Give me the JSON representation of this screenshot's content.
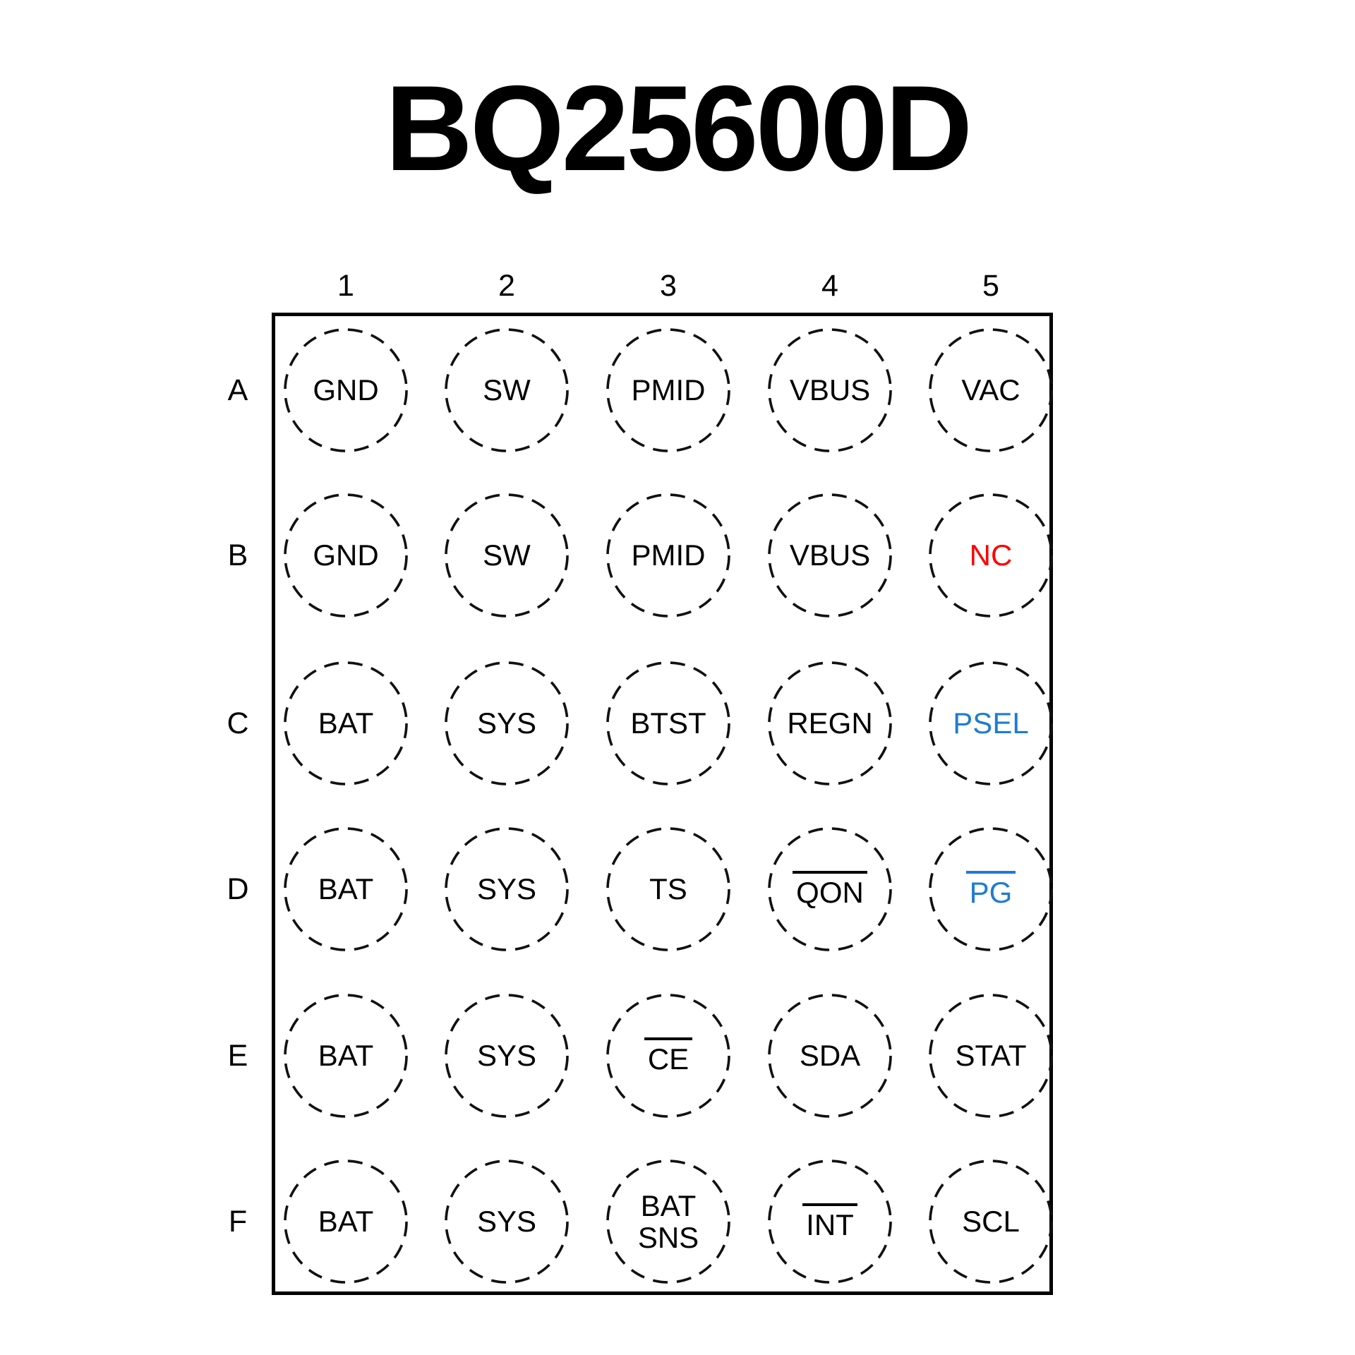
{
  "title": "BQ25600D",
  "colors": {
    "black": "#000000",
    "red": "#FF0000",
    "blue": "#1E7CD2"
  },
  "grid": {
    "columns": [
      "1",
      "2",
      "3",
      "4",
      "5"
    ],
    "rows": [
      "A",
      "B",
      "C",
      "D",
      "E",
      "F"
    ],
    "pins": [
      {
        "id": "A1",
        "row": "A",
        "col": "1",
        "lines": [
          "GND"
        ],
        "color": "black",
        "overline": false
      },
      {
        "id": "A2",
        "row": "A",
        "col": "2",
        "lines": [
          "SW"
        ],
        "color": "black",
        "overline": false
      },
      {
        "id": "A3",
        "row": "A",
        "col": "3",
        "lines": [
          "PMID"
        ],
        "color": "black",
        "overline": false
      },
      {
        "id": "A4",
        "row": "A",
        "col": "4",
        "lines": [
          "VBUS"
        ],
        "color": "black",
        "overline": false
      },
      {
        "id": "A5",
        "row": "A",
        "col": "5",
        "lines": [
          "VAC"
        ],
        "color": "black",
        "overline": false
      },
      {
        "id": "B1",
        "row": "B",
        "col": "1",
        "lines": [
          "GND"
        ],
        "color": "black",
        "overline": false
      },
      {
        "id": "B2",
        "row": "B",
        "col": "2",
        "lines": [
          "SW"
        ],
        "color": "black",
        "overline": false
      },
      {
        "id": "B3",
        "row": "B",
        "col": "3",
        "lines": [
          "PMID"
        ],
        "color": "black",
        "overline": false
      },
      {
        "id": "B4",
        "row": "B",
        "col": "4",
        "lines": [
          "VBUS"
        ],
        "color": "black",
        "overline": false
      },
      {
        "id": "B5",
        "row": "B",
        "col": "5",
        "lines": [
          "NC"
        ],
        "color": "red",
        "overline": false
      },
      {
        "id": "C1",
        "row": "C",
        "col": "1",
        "lines": [
          "BAT"
        ],
        "color": "black",
        "overline": false
      },
      {
        "id": "C2",
        "row": "C",
        "col": "2",
        "lines": [
          "SYS"
        ],
        "color": "black",
        "overline": false
      },
      {
        "id": "C3",
        "row": "C",
        "col": "3",
        "lines": [
          "BTST"
        ],
        "color": "black",
        "overline": false
      },
      {
        "id": "C4",
        "row": "C",
        "col": "4",
        "lines": [
          "REGN"
        ],
        "color": "black",
        "overline": false
      },
      {
        "id": "C5",
        "row": "C",
        "col": "5",
        "lines": [
          "PSEL"
        ],
        "color": "blue",
        "overline": false
      },
      {
        "id": "D1",
        "row": "D",
        "col": "1",
        "lines": [
          "BAT"
        ],
        "color": "black",
        "overline": false
      },
      {
        "id": "D2",
        "row": "D",
        "col": "2",
        "lines": [
          "SYS"
        ],
        "color": "black",
        "overline": false
      },
      {
        "id": "D3",
        "row": "D",
        "col": "3",
        "lines": [
          "TS"
        ],
        "color": "black",
        "overline": false
      },
      {
        "id": "D4",
        "row": "D",
        "col": "4",
        "lines": [
          "QON"
        ],
        "color": "black",
        "overline": true
      },
      {
        "id": "D5",
        "row": "D",
        "col": "5",
        "lines": [
          "PG"
        ],
        "color": "blue",
        "overline": true
      },
      {
        "id": "E1",
        "row": "E",
        "col": "1",
        "lines": [
          "BAT"
        ],
        "color": "black",
        "overline": false
      },
      {
        "id": "E2",
        "row": "E",
        "col": "2",
        "lines": [
          "SYS"
        ],
        "color": "black",
        "overline": false
      },
      {
        "id": "E3",
        "row": "E",
        "col": "3",
        "lines": [
          "CE"
        ],
        "color": "black",
        "overline": true
      },
      {
        "id": "E4",
        "row": "E",
        "col": "4",
        "lines": [
          "SDA"
        ],
        "color": "black",
        "overline": false
      },
      {
        "id": "E5",
        "row": "E",
        "col": "5",
        "lines": [
          "STAT"
        ],
        "color": "black",
        "overline": false
      },
      {
        "id": "F1",
        "row": "F",
        "col": "1",
        "lines": [
          "BAT"
        ],
        "color": "black",
        "overline": false
      },
      {
        "id": "F2",
        "row": "F",
        "col": "2",
        "lines": [
          "SYS"
        ],
        "color": "black",
        "overline": false
      },
      {
        "id": "F3",
        "row": "F",
        "col": "3",
        "lines": [
          "BAT",
          "SNS"
        ],
        "color": "black",
        "overline": false
      },
      {
        "id": "F4",
        "row": "F",
        "col": "4",
        "lines": [
          "INT"
        ],
        "color": "black",
        "overline": true
      },
      {
        "id": "F5",
        "row": "F",
        "col": "5",
        "lines": [
          "SCL"
        ],
        "color": "black",
        "overline": false
      }
    ]
  }
}
